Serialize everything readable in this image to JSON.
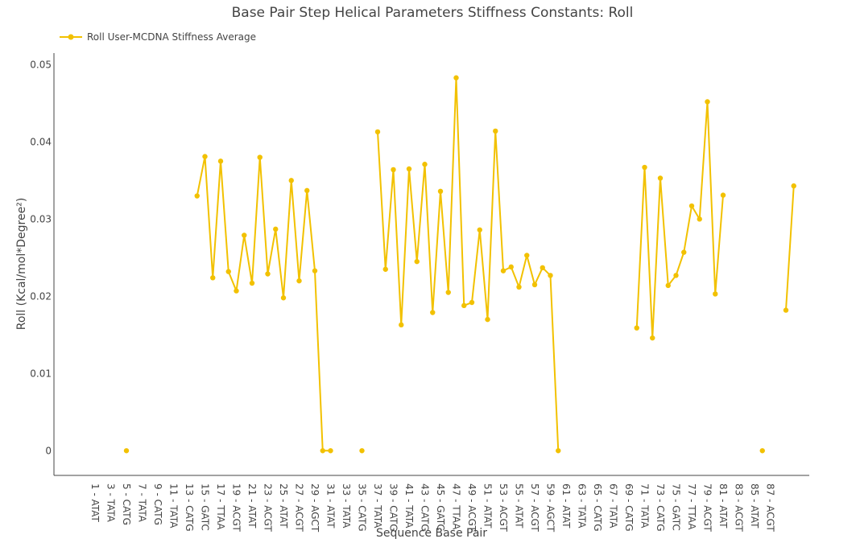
{
  "chart_data": {
    "type": "line",
    "title": "Base Pair Step Helical Parameters Stiffness Constants: Roll",
    "xlabel": "Sequence Base Pair",
    "ylabel": "Roll (Kcal/mol*Degree²)",
    "ylim": [
      -0.0032,
      0.0515
    ],
    "yticks": [
      0,
      0.01,
      0.02,
      0.03,
      0.04,
      0.05
    ],
    "ytick_labels": [
      "0",
      "0.01",
      "0.02",
      "0.03",
      "0.04",
      "0.05"
    ],
    "xtick_labels": [
      "1 - ATAT",
      "3 - TATA",
      "5 - CATG",
      "7 - TATA",
      "9 - CATG",
      "11 - TATA",
      "13 - CATG",
      "15 - GATC",
      "17 - TTAA",
      "19 - ACGT",
      "21 - ATAT",
      "23 - ACGT",
      "25 - ATAT",
      "27 - ACGT",
      "29 - AGCT",
      "31 - ATAT",
      "33 - TATA",
      "35 - CATG",
      "37 - TATA",
      "39 - CATG",
      "41 - TATA",
      "43 - CATG",
      "45 - GATC",
      "47 - TTAA",
      "49 - ACGT",
      "51 - ATAT",
      "53 - ACGT",
      "55 - ATAT",
      "57 - ACGT",
      "59 - AGCT",
      "61 - ATAT",
      "63 - TATA",
      "65 - CATG",
      "67 - TATA",
      "69 - CATG",
      "71 - TATA",
      "73 - CATG",
      "75 - GATC",
      "77 - TTAA",
      "79 - ACGT",
      "81 - ATAT",
      "83 - ACGT",
      "85 - ATAT",
      "87 - ACGT"
    ],
    "grid": false,
    "legend_position": "top-left",
    "series": [
      {
        "name": "Roll User-MCDNA Stiffness Average",
        "color": "#f2c100",
        "values": [
          null,
          null,
          null,
          null,
          0,
          null,
          null,
          null,
          null,
          null,
          null,
          null,
          null,
          0.033,
          0.0381,
          0.0224,
          0.0375,
          0.0232,
          0.0207,
          0.0279,
          0.0217,
          0.038,
          0.0229,
          0.0287,
          0.0198,
          0.035,
          0.022,
          0.0337,
          0.0233,
          0,
          0,
          null,
          null,
          null,
          0,
          null,
          0.0413,
          0.0235,
          0.0364,
          0.0163,
          0.0365,
          0.0245,
          0.0371,
          0.0179,
          0.0336,
          0.0205,
          0.0483,
          0.0188,
          0.0192,
          0.0286,
          0.017,
          0.0414,
          0.0233,
          0.0238,
          0.0212,
          0.0253,
          0.0215,
          0.0237,
          0.0227,
          0,
          null,
          null,
          null,
          null,
          null,
          null,
          null,
          null,
          null,
          0.0159,
          0.0367,
          0.0146,
          0.0353,
          0.0214,
          0.0227,
          0.0257,
          0.0317,
          0.03,
          0.0452,
          0.0203,
          0.0331,
          null,
          null,
          null,
          null,
          0,
          null,
          null,
          0.0182,
          0.0343
        ]
      }
    ]
  }
}
